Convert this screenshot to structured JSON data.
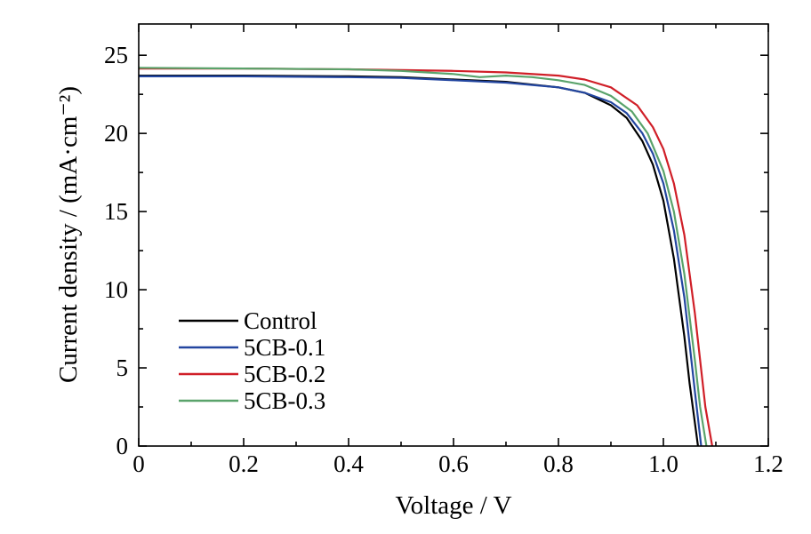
{
  "chart_data": {
    "type": "line",
    "xlabel": "Voltage / V",
    "ylabel": "Current density / (mA·cm⁻²)",
    "xlim": [
      0,
      1.2
    ],
    "ylim": [
      0,
      27
    ],
    "xticks": [
      0,
      0.2,
      0.4,
      0.6,
      0.8,
      1.0,
      1.2
    ],
    "xtick_labels": [
      "0",
      "0.2",
      "0.4",
      "0.6",
      "0.8",
      "1.0",
      "1.2"
    ],
    "yticks": [
      0,
      5,
      10,
      15,
      20,
      25
    ],
    "ytick_labels": [
      "0",
      "5",
      "10",
      "15",
      "20",
      "25"
    ],
    "grid": false,
    "legend_position": "lower-left",
    "series": [
      {
        "name": "Control",
        "color": "#000000",
        "x": [
          0,
          0.2,
          0.4,
          0.5,
          0.6,
          0.7,
          0.8,
          0.85,
          0.9,
          0.93,
          0.96,
          0.98,
          1.0,
          1.02,
          1.04,
          1.05,
          1.06,
          1.066
        ],
        "y": [
          23.7,
          23.7,
          23.65,
          23.6,
          23.45,
          23.3,
          22.95,
          22.6,
          21.8,
          21.0,
          19.5,
          18.0,
          15.7,
          12.0,
          7.0,
          4.0,
          1.5,
          0
        ]
      },
      {
        "name": "5CB-0.1",
        "color": "#2346a0",
        "x": [
          0,
          0.2,
          0.4,
          0.5,
          0.6,
          0.7,
          0.8,
          0.85,
          0.9,
          0.93,
          0.96,
          0.98,
          1.0,
          1.02,
          1.04,
          1.05,
          1.06,
          1.072
        ],
        "y": [
          23.65,
          23.65,
          23.6,
          23.55,
          23.4,
          23.25,
          22.95,
          22.6,
          22.0,
          21.3,
          20.0,
          18.7,
          16.8,
          13.8,
          9.5,
          6.5,
          3.5,
          0
        ]
      },
      {
        "name": "5CB-0.2",
        "color": "#d01f28",
        "x": [
          0,
          0.2,
          0.4,
          0.5,
          0.6,
          0.7,
          0.8,
          0.85,
          0.9,
          0.95,
          0.98,
          1.0,
          1.02,
          1.04,
          1.06,
          1.07,
          1.08,
          1.093
        ],
        "y": [
          24.15,
          24.15,
          24.1,
          24.05,
          24.0,
          23.9,
          23.7,
          23.45,
          22.95,
          21.8,
          20.4,
          19.0,
          16.8,
          13.5,
          8.5,
          5.5,
          2.5,
          0
        ]
      },
      {
        "name": "5CB-0.3",
        "color": "#5aa36b",
        "x": [
          0,
          0.2,
          0.4,
          0.5,
          0.6,
          0.65,
          0.7,
          0.75,
          0.8,
          0.85,
          0.9,
          0.94,
          0.97,
          1.0,
          1.02,
          1.04,
          1.06,
          1.07,
          1.082
        ],
        "y": [
          24.2,
          24.15,
          24.1,
          24.0,
          23.8,
          23.6,
          23.7,
          23.6,
          23.4,
          23.1,
          22.4,
          21.4,
          20.0,
          17.6,
          15.0,
          11.0,
          5.5,
          2.5,
          0
        ]
      }
    ]
  }
}
